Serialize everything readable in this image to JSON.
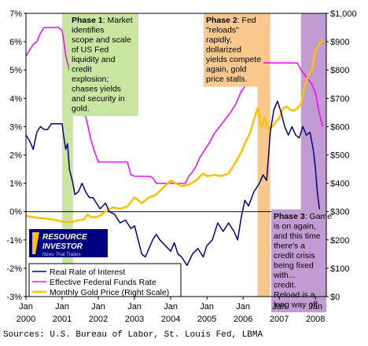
{
  "chart_data": {
    "type": "line",
    "title": "",
    "xlabel": "",
    "ylabel": "",
    "x_range": [
      2000.0,
      2008.3
    ],
    "ylim_left": [
      -3,
      7
    ],
    "ylim_right": [
      0,
      1000
    ],
    "y_ticks_left": [
      "7%",
      "6%",
      "5%",
      "4%",
      "3%",
      "2%",
      "1%",
      "0%",
      "-1%",
      "-2%",
      "-3%"
    ],
    "y_ticks_right": [
      "$1,000",
      "$900",
      "$800",
      "$700",
      "$600",
      "$500",
      "$400",
      "$300",
      "$200",
      "$100",
      "$0"
    ],
    "x_ticks": [
      {
        "line1": "Jan",
        "line2": "2000"
      },
      {
        "line1": "Jan",
        "line2": "2001"
      },
      {
        "line1": "Jan",
        "line2": "2002"
      },
      {
        "line1": "Jan",
        "line2": "2003"
      },
      {
        "line1": "Jan",
        "line2": "2004"
      },
      {
        "line1": "Jan",
        "line2": "2005"
      },
      {
        "line1": "Jan",
        "line2": "2006"
      },
      {
        "line1": "Jan",
        "line2": "2007"
      },
      {
        "line1": "Jan",
        "line2": "2008"
      }
    ],
    "grid": false,
    "legend_position": "bottom-left",
    "series": [
      {
        "name": "Real Rate of Interest",
        "color": "#000080",
        "axis": "left",
        "points": [
          [
            2000.0,
            2.7
          ],
          [
            2000.1,
            2.5
          ],
          [
            2000.2,
            2.2
          ],
          [
            2000.3,
            2.8
          ],
          [
            2000.4,
            3.0
          ],
          [
            2000.5,
            2.9
          ],
          [
            2000.6,
            2.9
          ],
          [
            2000.7,
            3.1
          ],
          [
            2000.8,
            3.1
          ],
          [
            2000.9,
            3.1
          ],
          [
            2001.0,
            3.1
          ],
          [
            2001.05,
            2.6
          ],
          [
            2001.1,
            2.2
          ],
          [
            2001.15,
            2.4
          ],
          [
            2001.2,
            1.5
          ],
          [
            2001.3,
            1.0
          ],
          [
            2001.35,
            0.6
          ],
          [
            2001.45,
            0.7
          ],
          [
            2001.55,
            1.0
          ],
          [
            2001.65,
            0.7
          ],
          [
            2001.75,
            0.5
          ],
          [
            2001.85,
            0.5
          ],
          [
            2001.95,
            0.3
          ],
          [
            2002.05,
            0.1
          ],
          [
            2002.2,
            0.3
          ],
          [
            2002.3,
            0.0
          ],
          [
            2002.45,
            -0.1
          ],
          [
            2002.6,
            -0.4
          ],
          [
            2002.75,
            -0.3
          ],
          [
            2002.9,
            -0.6
          ],
          [
            2003.0,
            -0.5
          ],
          [
            2003.1,
            -1.0
          ],
          [
            2003.2,
            -1.5
          ],
          [
            2003.3,
            -1.6
          ],
          [
            2003.5,
            -1.0
          ],
          [
            2003.6,
            -0.8
          ],
          [
            2003.7,
            -1.0
          ],
          [
            2003.85,
            -1.2
          ],
          [
            2004.0,
            -1.4
          ],
          [
            2004.1,
            -1.1
          ],
          [
            2004.2,
            -1.5
          ],
          [
            2004.3,
            -1.6
          ],
          [
            2004.45,
            -1.9
          ],
          [
            2004.6,
            -1.5
          ],
          [
            2004.75,
            -1.3
          ],
          [
            2004.9,
            -1.6
          ],
          [
            2005.0,
            -1.2
          ],
          [
            2005.15,
            -1.0
          ],
          [
            2005.3,
            -0.4
          ],
          [
            2005.45,
            -0.7
          ],
          [
            2005.6,
            -0.4
          ],
          [
            2005.75,
            -0.7
          ],
          [
            2005.85,
            -1.0
          ],
          [
            2005.95,
            -0.2
          ],
          [
            2006.05,
            0.4
          ],
          [
            2006.15,
            0.2
          ],
          [
            2006.3,
            0.7
          ],
          [
            2006.45,
            1.0
          ],
          [
            2006.55,
            1.3
          ],
          [
            2006.65,
            1.1
          ],
          [
            2006.75,
            2.8
          ],
          [
            2006.85,
            3.6
          ],
          [
            2006.95,
            3.9
          ],
          [
            2007.05,
            3.5
          ],
          [
            2007.15,
            3.0
          ],
          [
            2007.25,
            2.7
          ],
          [
            2007.35,
            3.0
          ],
          [
            2007.45,
            2.7
          ],
          [
            2007.55,
            2.6
          ],
          [
            2007.65,
            3.0
          ],
          [
            2007.75,
            2.7
          ],
          [
            2007.85,
            2.8
          ],
          [
            2007.95,
            2.1
          ],
          [
            2008.0,
            1.5
          ],
          [
            2008.05,
            0.7
          ],
          [
            2008.12,
            0.0
          ],
          [
            2008.2,
            -0.1
          ],
          [
            2008.28,
            -1.0
          ]
        ]
      },
      {
        "name": "Effective Federal Funds Rate",
        "color": "#ff00ff",
        "axis": "left",
        "points": [
          [
            2000.0,
            5.5
          ],
          [
            2000.1,
            5.7
          ],
          [
            2000.2,
            5.9
          ],
          [
            2000.3,
            6.0
          ],
          [
            2000.4,
            6.3
          ],
          [
            2000.5,
            6.5
          ],
          [
            2000.7,
            6.5
          ],
          [
            2000.9,
            6.5
          ],
          [
            2001.0,
            6.4
          ],
          [
            2001.05,
            6.0
          ],
          [
            2001.1,
            5.5
          ],
          [
            2001.2,
            5.0
          ],
          [
            2001.3,
            4.5
          ],
          [
            2001.4,
            4.2
          ],
          [
            2001.5,
            3.9
          ],
          [
            2001.6,
            3.6
          ],
          [
            2001.7,
            3.1
          ],
          [
            2001.8,
            2.5
          ],
          [
            2001.9,
            2.1
          ],
          [
            2002.0,
            1.75
          ],
          [
            2002.4,
            1.75
          ],
          [
            2002.8,
            1.75
          ],
          [
            2002.9,
            1.3
          ],
          [
            2003.0,
            1.25
          ],
          [
            2003.4,
            1.25
          ],
          [
            2003.5,
            1.2
          ],
          [
            2003.6,
            1.0
          ],
          [
            2004.0,
            1.0
          ],
          [
            2004.4,
            1.0
          ],
          [
            2004.5,
            1.25
          ],
          [
            2004.6,
            1.4
          ],
          [
            2004.7,
            1.6
          ],
          [
            2004.8,
            1.9
          ],
          [
            2004.95,
            2.2
          ],
          [
            2005.1,
            2.5
          ],
          [
            2005.2,
            2.75
          ],
          [
            2005.35,
            3.0
          ],
          [
            2005.5,
            3.25
          ],
          [
            2005.65,
            3.5
          ],
          [
            2005.8,
            3.8
          ],
          [
            2005.95,
            4.25
          ],
          [
            2006.1,
            4.5
          ],
          [
            2006.3,
            4.9
          ],
          [
            2006.45,
            5.25
          ],
          [
            2007.5,
            5.25
          ],
          [
            2007.6,
            5.0
          ],
          [
            2007.75,
            4.75
          ],
          [
            2007.9,
            4.5
          ],
          [
            2008.0,
            4.2
          ],
          [
            2008.1,
            3.5
          ],
          [
            2008.2,
            3.0
          ]
        ]
      },
      {
        "name": "Monthly Gold Price (Right Scale)",
        "color": "#ffc000",
        "axis": "right",
        "points": [
          [
            2000.0,
            285
          ],
          [
            2000.2,
            280
          ],
          [
            2000.4,
            277
          ],
          [
            2000.6,
            275
          ],
          [
            2000.8,
            270
          ],
          [
            2001.0,
            265
          ],
          [
            2001.2,
            262
          ],
          [
            2001.4,
            268
          ],
          [
            2001.6,
            272
          ],
          [
            2001.7,
            290
          ],
          [
            2001.8,
            280
          ],
          [
            2002.0,
            282
          ],
          [
            2002.2,
            300
          ],
          [
            2002.4,
            315
          ],
          [
            2002.6,
            310
          ],
          [
            2002.8,
            318
          ],
          [
            2003.0,
            350
          ],
          [
            2003.2,
            330
          ],
          [
            2003.4,
            350
          ],
          [
            2003.6,
            360
          ],
          [
            2003.8,
            385
          ],
          [
            2004.0,
            410
          ],
          [
            2004.15,
            400
          ],
          [
            2004.3,
            390
          ],
          [
            2004.5,
            395
          ],
          [
            2004.7,
            410
          ],
          [
            2004.9,
            435
          ],
          [
            2005.0,
            425
          ],
          [
            2005.2,
            430
          ],
          [
            2005.4,
            425
          ],
          [
            2005.6,
            435
          ],
          [
            2005.8,
            475
          ],
          [
            2005.95,
            510
          ],
          [
            2006.05,
            540
          ],
          [
            2006.2,
            580
          ],
          [
            2006.3,
            625
          ],
          [
            2006.4,
            665
          ],
          [
            2006.5,
            600
          ],
          [
            2006.6,
            630
          ],
          [
            2006.7,
            590
          ],
          [
            2006.8,
            600
          ],
          [
            2006.9,
            615
          ],
          [
            2007.0,
            630
          ],
          [
            2007.1,
            665
          ],
          [
            2007.2,
            670
          ],
          [
            2007.3,
            660
          ],
          [
            2007.4,
            655
          ],
          [
            2007.5,
            665
          ],
          [
            2007.6,
            680
          ],
          [
            2007.7,
            740
          ],
          [
            2007.8,
            780
          ],
          [
            2007.9,
            800
          ],
          [
            2008.0,
            870
          ],
          [
            2008.1,
            890
          ],
          [
            2008.2,
            910
          ]
        ]
      }
    ],
    "phases": [
      {
        "label": "Phase 1",
        "start": 2001.0,
        "end": 2001.3,
        "color": "#c8e6a0",
        "text_pos": "top-left"
      },
      {
        "label": "Phase 2",
        "start": 2006.4,
        "end": 2006.75,
        "color": "#f8c88c",
        "text_pos": "top-left"
      },
      {
        "label": "Phase 3",
        "start": 2007.6,
        "end": 2008.3,
        "color": "#c39bd3",
        "text_pos": "bottom-right"
      }
    ],
    "annotations": [
      {
        "bold": "Phase 1",
        "text": ": Market identifies scope and scale of US Fed liquidity and credit explosion; chases yields and security in gold."
      },
      {
        "bold": "Phase 2",
        "text": ": Fed \"reloads\" rapidly, dollarized yields compete again, gold price stalls."
      },
      {
        "bold": "Phase 3",
        "text": ": Game is on again, and this time there's a credit crisis being fixed with... credit. Reload is a long way off."
      }
    ]
  },
  "logo": {
    "text_top": "RESOURCE",
    "text_bottom": "INVESTOR",
    "tagline": "News That Trades"
  },
  "source": "Sources: U.S. Bureau of Labor, St. Louis Fed, LBMA"
}
